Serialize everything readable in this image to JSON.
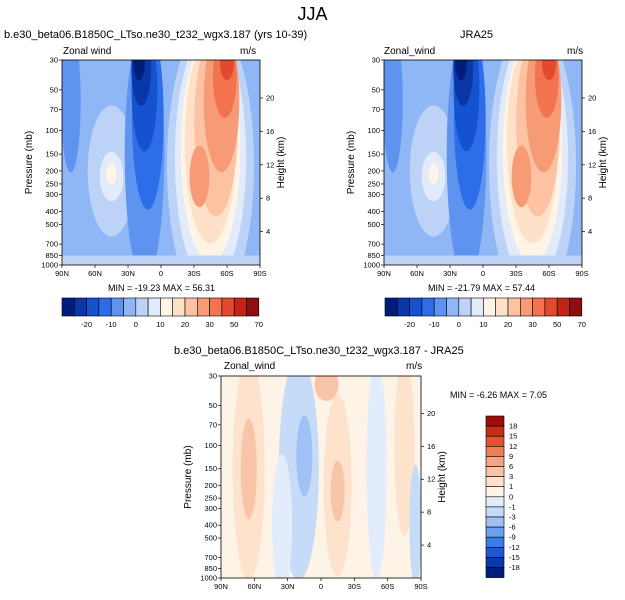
{
  "figure": {
    "season": "JJA"
  },
  "colors": {
    "wind_scale": [
      "#001d7a",
      "#0a37a8",
      "#1552d0",
      "#2d6ee8",
      "#5e93f0",
      "#8fb6f5",
      "#bcd3f7",
      "#e1ebfa",
      "#fff4e6",
      "#ffe1c9",
      "#fcc2a2",
      "#f79b76",
      "#f1744f",
      "#e34a2d",
      "#c32418",
      "#8f0e0e"
    ],
    "diff_scale": [
      "#001f7d",
      "#0a3aa8",
      "#1b58d2",
      "#3a7de6",
      "#6ba1ef",
      "#9fc1f5",
      "#c6dbf8",
      "#e2ecfb",
      "#fdf3e7",
      "#fde2cc",
      "#f8c5a8",
      "#f3a584",
      "#ec7f58",
      "#e0552f",
      "#c52b16",
      "#9c0e0e"
    ]
  },
  "chart_data": [
    {
      "type": "heatmap",
      "title": "b.e30_beta06.B1850C_LTso.ne30_t232_wgx3.187 (yrs 10-39)",
      "left_label": "Zonal wind",
      "units": "m/s",
      "ylabel": "Pressure (mb)",
      "y2label": "Height (km)",
      "stats": "MIN = -19.23   MAX =  56.31",
      "x_ticks": [
        "90N",
        "60N",
        "30N",
        "0",
        "30S",
        "60S",
        "90S"
      ],
      "x_values": [
        90,
        60,
        30,
        0,
        -30,
        -60,
        -90
      ],
      "y_ticks": [
        "30",
        "50",
        "70",
        "100",
        "150",
        "200",
        "250",
        "300",
        "400",
        "500",
        "700",
        "850",
        "1000"
      ],
      "y_values": [
        30,
        50,
        70,
        100,
        150,
        200,
        250,
        300,
        400,
        500,
        700,
        850,
        1000
      ],
      "height_ticks": [
        "20",
        "16",
        "12",
        "8",
        "4"
      ],
      "height_values": [
        20,
        16,
        12,
        8,
        4
      ],
      "ylim": [
        30,
        1000
      ],
      "xlim": [
        90,
        -90
      ]
    },
    {
      "type": "heatmap",
      "title": "JRA25",
      "left_label": "Zonal_wind",
      "units": "m/s",
      "ylabel": "Pressure (mb)",
      "y2label": "Height (km)",
      "stats": "MIN = -21.79   MAX =  57.44",
      "x_ticks": [
        "90N",
        "60N",
        "30N",
        "0",
        "30S",
        "60S",
        "90S"
      ],
      "x_values": [
        90,
        60,
        30,
        0,
        -30,
        -60,
        -90
      ],
      "y_ticks": [
        "30",
        "50",
        "70",
        "100",
        "150",
        "200",
        "250",
        "300",
        "400",
        "500",
        "700",
        "850",
        "1000"
      ],
      "y_values": [
        30,
        50,
        70,
        100,
        150,
        200,
        250,
        300,
        400,
        500,
        700,
        850,
        1000
      ],
      "height_ticks": [
        "20",
        "16",
        "12",
        "8",
        "4"
      ],
      "height_values": [
        20,
        16,
        12,
        8,
        4
      ],
      "ylim": [
        30,
        1000
      ],
      "xlim": [
        90,
        -90
      ]
    },
    {
      "type": "heatmap",
      "title": "b.e30_beta06.B1850C_LTso.ne30_t232_wgx3.187 - JRA25",
      "left_label": "Zonal_wind",
      "units": "m/s",
      "ylabel": "Pressure (mb)",
      "y2label": "Height (km)",
      "stats": "MIN =  -6.26   MAX =   7.05",
      "x_ticks": [
        "90N",
        "60N",
        "30N",
        "0",
        "30S",
        "60S",
        "90S"
      ],
      "x_values": [
        90,
        60,
        30,
        0,
        -30,
        -60,
        -90
      ],
      "y_ticks": [
        "30",
        "50",
        "70",
        "100",
        "150",
        "200",
        "250",
        "300",
        "400",
        "500",
        "700",
        "850",
        "1000"
      ],
      "y_values": [
        30,
        50,
        70,
        100,
        150,
        200,
        250,
        300,
        400,
        500,
        700,
        850,
        1000
      ],
      "height_ticks": [
        "20",
        "16",
        "12",
        "8",
        "4"
      ],
      "height_values": [
        20,
        16,
        12,
        8,
        4
      ],
      "ylim": [
        30,
        1000
      ],
      "xlim": [
        90,
        -90
      ]
    }
  ],
  "colorbars": {
    "wind": {
      "tick_labels": [
        "-20",
        "-10",
        "0",
        "10",
        "20",
        "30",
        "50",
        "70"
      ],
      "label_after_box": [
        1,
        3,
        5,
        7,
        9,
        11,
        13,
        15
      ]
    },
    "diff": {
      "levels": [
        "18",
        "15",
        "12",
        "9",
        "6",
        "3",
        "1",
        "0",
        "-1",
        "-3",
        "-6",
        "-9",
        "-12",
        "-15",
        "-18"
      ]
    }
  }
}
